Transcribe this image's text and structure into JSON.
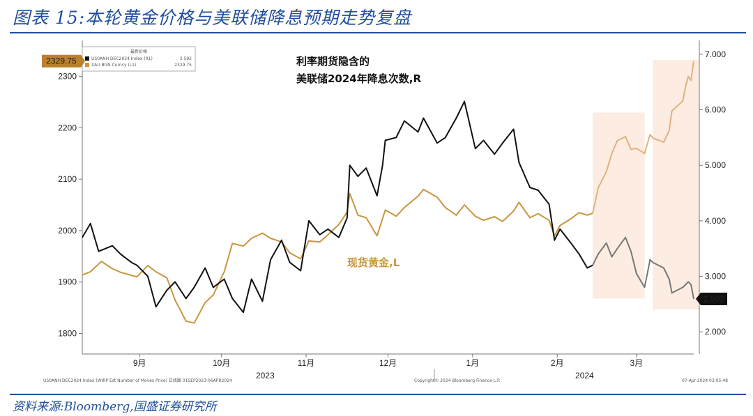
{
  "header": {
    "title": "图表 15:本轮黄金价格与美联储降息预期走势复盘"
  },
  "footer": {
    "source": "资料来源:Bloomberg,国盛证券研究所"
  },
  "chart_data": {
    "type": "line",
    "legend": {
      "title": "最新价格",
      "items": [
        {
          "label": "US0ANH DEC2024 Index (R1)",
          "value": "2.592",
          "color": "#111111"
        },
        {
          "label": "XAU BGN Curncy (L1)",
          "value": "2329.75",
          "color": "#c8963e"
        }
      ],
      "placement": "top-left"
    },
    "annotations": {
      "rate": "利率期货隐含的\n美联储2024年降息次数,R",
      "gold": "现货黄金,L"
    },
    "left_axis": {
      "ylim": [
        1760,
        2370
      ],
      "ticks": [
        "1800",
        "1900",
        "2000",
        "2100",
        "2200",
        "2300"
      ]
    },
    "right_axis": {
      "ylim": [
        1.6,
        7.25
      ],
      "ticks": [
        "2.000",
        "3.000",
        "4.000",
        "5.000",
        "6.000",
        "7.000"
      ]
    },
    "x_axis": {
      "range": [
        "2023-08-25",
        "2024-04-05"
      ],
      "months": [
        {
          "label": "9月",
          "date": "2023-09-15"
        },
        {
          "label": "10月",
          "date": "2023-10-15"
        },
        {
          "label": "11月",
          "date": "2023-11-15"
        },
        {
          "label": "12月",
          "date": "2023-12-15"
        },
        {
          "label": "1月",
          "date": "2024-01-15"
        },
        {
          "label": "2月",
          "date": "2024-02-15"
        },
        {
          "label": "3月",
          "date": "2024-03-15"
        }
      ],
      "years": [
        {
          "label": "2023",
          "date": "2023-10-31"
        },
        {
          "label": "2024",
          "date": "2024-02-25"
        }
      ],
      "year_divider": "2024-01-01"
    },
    "highlights": [
      {
        "start": "2024-02-28",
        "end": "2024-03-18",
        "y_range": [
          2.6,
          5.95
        ]
      },
      {
        "start": "2024-03-21",
        "end": "2024-04-07",
        "y_range": [
          2.4,
          6.9
        ]
      }
    ],
    "last_values": {
      "gold": "2329.75",
      "rate": "2.592"
    },
    "series": [
      {
        "name": "XAU BGN Curncy",
        "axis": "left",
        "color": "#c8963e",
        "points": [
          [
            "2023-08-25",
            1914
          ],
          [
            "2023-08-28",
            1920
          ],
          [
            "2023-09-01",
            1940
          ],
          [
            "2023-09-05",
            1926
          ],
          [
            "2023-09-08",
            1919
          ],
          [
            "2023-09-12",
            1913
          ],
          [
            "2023-09-14",
            1910
          ],
          [
            "2023-09-18",
            1932
          ],
          [
            "2023-09-21",
            1920
          ],
          [
            "2023-09-25",
            1908
          ],
          [
            "2023-09-28",
            1865
          ],
          [
            "2023-10-02",
            1824
          ],
          [
            "2023-10-05",
            1820
          ],
          [
            "2023-10-09",
            1860
          ],
          [
            "2023-10-12",
            1875
          ],
          [
            "2023-10-16",
            1920
          ],
          [
            "2023-10-19",
            1975
          ],
          [
            "2023-10-23",
            1970
          ],
          [
            "2023-10-26",
            1985
          ],
          [
            "2023-10-30",
            1995
          ],
          [
            "2023-11-02",
            1985
          ],
          [
            "2023-11-06",
            1978
          ],
          [
            "2023-11-09",
            1957
          ],
          [
            "2023-11-13",
            1945
          ],
          [
            "2023-11-16",
            1980
          ],
          [
            "2023-11-20",
            1978
          ],
          [
            "2023-11-23",
            1992
          ],
          [
            "2023-11-27",
            2012
          ],
          [
            "2023-11-30",
            2036
          ],
          [
            "2023-12-01",
            2072
          ],
          [
            "2023-12-04",
            2030
          ],
          [
            "2023-12-07",
            2025
          ],
          [
            "2023-12-11",
            1990
          ],
          [
            "2023-12-14",
            2040
          ],
          [
            "2023-12-18",
            2028
          ],
          [
            "2023-12-21",
            2045
          ],
          [
            "2023-12-26",
            2067
          ],
          [
            "2023-12-28",
            2080
          ],
          [
            "2024-01-02",
            2065
          ],
          [
            "2024-01-05",
            2045
          ],
          [
            "2024-01-09",
            2030
          ],
          [
            "2024-01-12",
            2050
          ],
          [
            "2024-01-16",
            2028
          ],
          [
            "2024-01-19",
            2020
          ],
          [
            "2024-01-23",
            2027
          ],
          [
            "2024-01-26",
            2018
          ],
          [
            "2024-01-30",
            2038
          ],
          [
            "2024-02-01",
            2055
          ],
          [
            "2024-02-05",
            2025
          ],
          [
            "2024-02-08",
            2033
          ],
          [
            "2024-02-12",
            2020
          ],
          [
            "2024-02-14",
            1990
          ],
          [
            "2024-02-16",
            2010
          ],
          [
            "2024-02-20",
            2023
          ],
          [
            "2024-02-23",
            2035
          ],
          [
            "2024-02-26",
            2030
          ],
          [
            "2024-02-28",
            2034
          ],
          [
            "2024-03-01",
            2083
          ],
          [
            "2024-03-04",
            2115
          ],
          [
            "2024-03-06",
            2150
          ],
          [
            "2024-03-08",
            2175
          ],
          [
            "2024-03-11",
            2183
          ],
          [
            "2024-03-13",
            2158
          ],
          [
            "2024-03-15",
            2160
          ],
          [
            "2024-03-18",
            2150
          ],
          [
            "2024-03-20",
            2187
          ],
          [
            "2024-03-21",
            2180
          ],
          [
            "2024-03-25",
            2172
          ],
          [
            "2024-03-27",
            2195
          ],
          [
            "2024-03-28",
            2233
          ],
          [
            "2024-04-01",
            2252
          ],
          [
            "2024-04-02",
            2280
          ],
          [
            "2024-04-03",
            2300
          ],
          [
            "2024-04-04",
            2292
          ],
          [
            "2024-04-05",
            2329.75
          ]
        ]
      },
      {
        "name": "US0ANH DEC2024 Index",
        "axis": "right",
        "color": "#111111",
        "points": [
          [
            "2023-08-25",
            3.7
          ],
          [
            "2023-08-28",
            3.95
          ],
          [
            "2023-08-31",
            3.45
          ],
          [
            "2023-09-05",
            3.55
          ],
          [
            "2023-09-08",
            3.4
          ],
          [
            "2023-09-12",
            3.25
          ],
          [
            "2023-09-14",
            3.2
          ],
          [
            "2023-09-18",
            3.0
          ],
          [
            "2023-09-21",
            2.45
          ],
          [
            "2023-09-25",
            2.75
          ],
          [
            "2023-09-28",
            2.9
          ],
          [
            "2023-10-02",
            2.6
          ],
          [
            "2023-10-05",
            2.8
          ],
          [
            "2023-10-09",
            3.15
          ],
          [
            "2023-10-12",
            2.8
          ],
          [
            "2023-10-16",
            2.95
          ],
          [
            "2023-10-19",
            2.6
          ],
          [
            "2023-10-23",
            2.35
          ],
          [
            "2023-10-26",
            2.95
          ],
          [
            "2023-10-30",
            2.55
          ],
          [
            "2023-11-02",
            3.3
          ],
          [
            "2023-11-06",
            3.65
          ],
          [
            "2023-11-09",
            3.25
          ],
          [
            "2023-11-13",
            3.1
          ],
          [
            "2023-11-16",
            4.0
          ],
          [
            "2023-11-20",
            3.75
          ],
          [
            "2023-11-23",
            3.85
          ],
          [
            "2023-11-27",
            3.7
          ],
          [
            "2023-11-30",
            4.05
          ],
          [
            "2023-12-01",
            5.0
          ],
          [
            "2023-12-04",
            4.8
          ],
          [
            "2023-12-07",
            4.95
          ],
          [
            "2023-12-11",
            4.45
          ],
          [
            "2023-12-13",
            5.0
          ],
          [
            "2023-12-14",
            5.45
          ],
          [
            "2023-12-18",
            5.5
          ],
          [
            "2023-12-21",
            5.8
          ],
          [
            "2023-12-26",
            5.6
          ],
          [
            "2023-12-28",
            5.85
          ],
          [
            "2024-01-02",
            5.4
          ],
          [
            "2024-01-05",
            5.5
          ],
          [
            "2024-01-09",
            5.85
          ],
          [
            "2024-01-12",
            6.15
          ],
          [
            "2024-01-16",
            5.3
          ],
          [
            "2024-01-19",
            5.45
          ],
          [
            "2024-01-23",
            5.2
          ],
          [
            "2024-01-26",
            5.4
          ],
          [
            "2024-01-30",
            5.65
          ],
          [
            "2024-02-01",
            5.05
          ],
          [
            "2024-02-05",
            4.6
          ],
          [
            "2024-02-08",
            4.55
          ],
          [
            "2024-02-12",
            4.3
          ],
          [
            "2024-02-14",
            3.65
          ],
          [
            "2024-02-16",
            3.85
          ],
          [
            "2024-02-20",
            3.6
          ],
          [
            "2024-02-23",
            3.4
          ],
          [
            "2024-02-26",
            3.15
          ],
          [
            "2024-02-28",
            3.2
          ],
          [
            "2024-03-01",
            3.4
          ],
          [
            "2024-03-04",
            3.6
          ],
          [
            "2024-03-06",
            3.35
          ],
          [
            "2024-03-08",
            3.5
          ],
          [
            "2024-03-11",
            3.7
          ],
          [
            "2024-03-13",
            3.45
          ],
          [
            "2024-03-15",
            3.05
          ],
          [
            "2024-03-18",
            2.8
          ],
          [
            "2024-03-20",
            3.3
          ],
          [
            "2024-03-21",
            3.25
          ],
          [
            "2024-03-25",
            3.15
          ],
          [
            "2024-03-27",
            2.95
          ],
          [
            "2024-03-28",
            2.7
          ],
          [
            "2024-04-01",
            2.8
          ],
          [
            "2024-04-03",
            2.9
          ],
          [
            "2024-04-04",
            2.85
          ],
          [
            "2024-04-05",
            2.592
          ]
        ]
      }
    ]
  },
  "chart_notes": {
    "bottom_left": "US0ANH DEC2024 Index (WIRP Est Number of Moves Price)  日线图 01SEP2023-06APR2024",
    "bottom_mid": "Copyright© 2024 Bloomberg Finance L.P.",
    "bottom_right": "07-Apr-2024 03:05:48"
  }
}
